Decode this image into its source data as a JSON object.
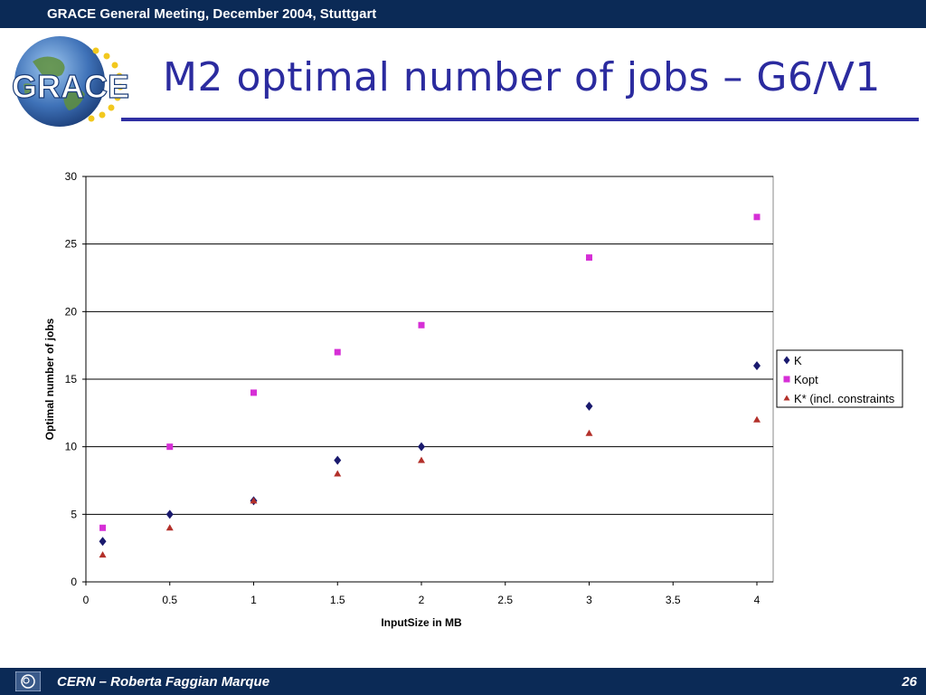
{
  "header": {
    "meeting": "GRACE General Meeting, December 2004, Stuttgart"
  },
  "logo": {
    "text": "GRACE"
  },
  "slide": {
    "title": "M2 optimal number of jobs – G6/V1"
  },
  "footer": {
    "author": "CERN – Roberta Faggian Marque",
    "page": "26"
  },
  "chart_data": {
    "type": "scatter",
    "title": "",
    "xlabel": "InputSize in MB",
    "ylabel": "Optimal number of jobs",
    "xlim": [
      0,
      4
    ],
    "ylim": [
      0,
      30
    ],
    "x_ticks": [
      "0",
      "0.5",
      "1",
      "1.5",
      "2",
      "2.5",
      "3",
      "3.5",
      "4"
    ],
    "y_ticks": [
      "0",
      "5",
      "10",
      "15",
      "20",
      "25",
      "30"
    ],
    "grid": "horizontal",
    "legend_position": "right",
    "series": [
      {
        "name": "K",
        "marker": "diamond",
        "color": "#1a1a6e",
        "x": [
          0.1,
          0.5,
          1,
          1.5,
          2,
          3,
          4
        ],
        "y": [
          3,
          5,
          6,
          9,
          10,
          13,
          16
        ]
      },
      {
        "name": "Kopt",
        "marker": "square",
        "color": "#d62fd6",
        "x": [
          0.1,
          0.5,
          1,
          1.5,
          2,
          3,
          4
        ],
        "y": [
          4,
          10,
          14,
          17,
          19,
          24,
          27
        ]
      },
      {
        "name": "K* (incl. constraints",
        "marker": "triangle",
        "color": "#b3302a",
        "x": [
          0.1,
          0.5,
          1,
          1.5,
          2,
          3,
          4
        ],
        "y": [
          2,
          4,
          6,
          8,
          9,
          11,
          12
        ]
      }
    ]
  }
}
